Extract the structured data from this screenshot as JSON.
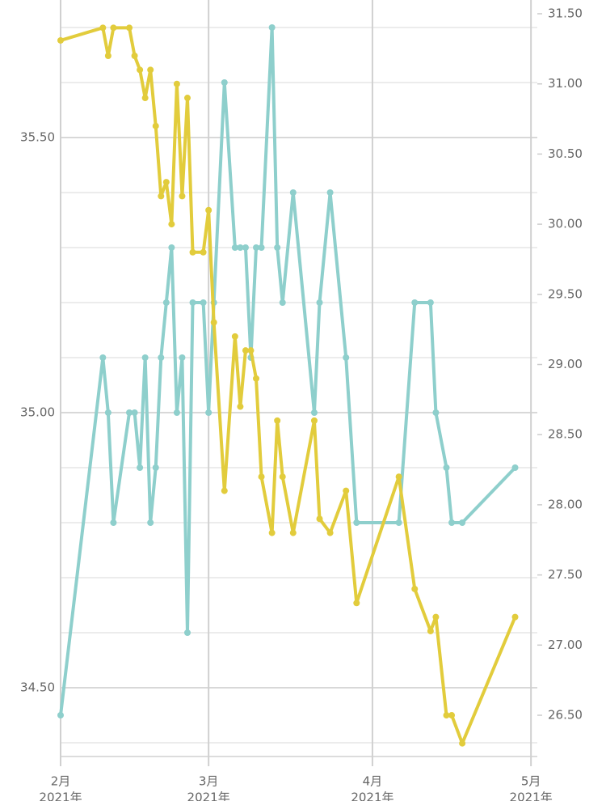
{
  "chart_data": {
    "type": "line",
    "x": [
      0,
      8,
      9,
      10,
      13,
      14,
      15,
      16,
      17,
      18,
      19,
      20,
      21,
      22,
      23,
      24,
      25,
      27,
      28,
      29,
      31,
      33,
      34,
      35,
      36,
      37,
      38,
      40,
      41,
      42,
      44,
      48,
      49,
      51,
      54,
      56,
      64,
      67,
      70,
      71,
      73,
      74,
      76,
      86
    ],
    "xlim": [
      0,
      90.2
    ],
    "xticks": [
      {
        "value": 0,
        "label": "2月",
        "sublabel": "2021年"
      },
      {
        "value": 28,
        "label": "3月",
        "sublabel": "2021年"
      },
      {
        "value": 59,
        "label": "4月",
        "sublabel": "2021年"
      },
      {
        "value": 89,
        "label": "5月",
        "sublabel": "2021年"
      }
    ],
    "ylim": [
      34.375,
      35.75
    ],
    "yticks": [
      {
        "value": 34.5,
        "label": "34.50"
      },
      {
        "value": 35,
        "label": "35.00"
      },
      {
        "value": 35.5,
        "label": "35.50"
      }
    ],
    "y_grid": [
      34.4,
      34.5,
      34.6,
      34.7,
      34.8,
      34.9,
      35.0,
      35.1,
      35.2,
      35.3,
      35.4,
      35.5,
      35.6,
      35.7
    ],
    "y2lim": [
      26.206,
      31.598
    ],
    "y2ticks": [
      {
        "value": 26.5,
        "label": "26.50"
      },
      {
        "value": 27,
        "label": "27.00"
      },
      {
        "value": 27.5,
        "label": "27.50"
      },
      {
        "value": 28,
        "label": "28.00"
      },
      {
        "value": 28.5,
        "label": "28.50"
      },
      {
        "value": 29,
        "label": "29.00"
      },
      {
        "value": 29.5,
        "label": "29.50"
      },
      {
        "value": 30,
        "label": "30.00"
      },
      {
        "value": 30.5,
        "label": "30.50"
      },
      {
        "value": 31,
        "label": "31.00"
      },
      {
        "value": 31.5,
        "label": "31.50"
      }
    ],
    "grid": true,
    "series": [
      {
        "color": "#8ecfcc",
        "values": [
          34.45,
          35.1,
          35.0,
          34.8,
          35.0,
          35.0,
          34.9,
          35.1,
          34.8,
          34.9,
          35.1,
          35.2,
          35.3,
          35.0,
          35.1,
          34.6,
          35.2,
          35.2,
          35.0,
          35.2,
          35.6,
          35.3,
          35.3,
          35.3,
          35.1,
          35.3,
          35.3,
          35.7,
          35.3,
          35.2,
          35.4,
          35.0,
          35.2,
          35.4,
          35.1,
          34.8,
          34.8,
          35.2,
          35.2,
          35.0,
          34.9,
          34.8,
          34.8,
          34.9
        ]
      },
      {
        "color": "#e2cc3c",
        "axis": "y2",
        "values": [
          31.31,
          31.4,
          31.2,
          31.4,
          31.4,
          31.2,
          31.1,
          30.9,
          31.1,
          30.7,
          30.2,
          30.3,
          30.0,
          31.0,
          30.2,
          30.9,
          29.8,
          29.8,
          30.1,
          29.3,
          28.1,
          29.2,
          28.7,
          29.1,
          29.1,
          28.9,
          28.2,
          27.8,
          28.6,
          28.2,
          27.8,
          28.6,
          27.9,
          27.8,
          28.1,
          27.3,
          28.2,
          27.4,
          27.1,
          27.2,
          26.5,
          26.5,
          26.3,
          27.2
        ]
      }
    ]
  }
}
